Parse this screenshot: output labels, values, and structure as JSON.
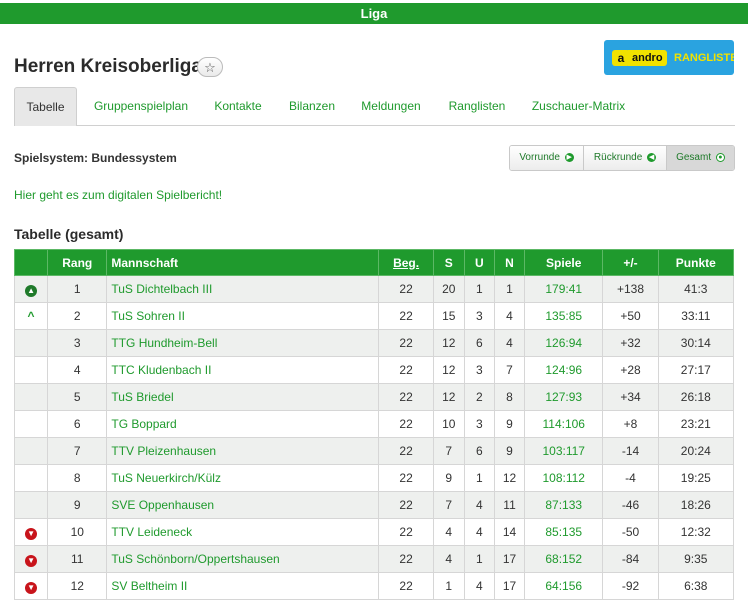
{
  "header": {
    "bar_label": "Liga"
  },
  "league": {
    "title": "Herren Kreisoberliga",
    "favorite_icon": "star-icon"
  },
  "sponsor": {
    "badge": "a",
    "brand": "andro",
    "label": "RANGLISTE"
  },
  "tabs": [
    {
      "label": "Tabelle",
      "active": true
    },
    {
      "label": "Gruppenspielplan",
      "active": false
    },
    {
      "label": "Kontakte",
      "active": false
    },
    {
      "label": "Bilanzen",
      "active": false
    },
    {
      "label": "Meldungen",
      "active": false
    },
    {
      "label": "Ranglisten",
      "active": false
    },
    {
      "label": "Zuschauer-Matrix",
      "active": false
    }
  ],
  "system": {
    "label": "Spielsystem: Bundessystem",
    "buttons": [
      {
        "label": "Vorrunde",
        "icon": "arrow-right-circle-icon"
      },
      {
        "label": "Rückrunde",
        "icon": "arrow-left-circle-icon"
      },
      {
        "label": "Gesamt",
        "icon": "target-circle-icon",
        "active": true
      }
    ]
  },
  "report_link": "Hier geht es zum digitalen Spielbericht!",
  "table": {
    "title": "Tabelle (gesamt)",
    "columns": [
      "",
      "Rang",
      "Mannschaft",
      "Beg.",
      "S",
      "U",
      "N",
      "Spiele",
      "+/-",
      "Punkte"
    ],
    "rows": [
      {
        "indicator": "promotion",
        "rank": "1",
        "team": "TuS Dichtelbach III",
        "beg": "22",
        "s": "20",
        "u": "1",
        "n": "1",
        "games": "179:41",
        "diff": "+138",
        "points": "41:3"
      },
      {
        "indicator": "relegation-up",
        "rank": "2",
        "team": "TuS Sohren II",
        "beg": "22",
        "s": "15",
        "u": "3",
        "n": "4",
        "games": "135:85",
        "diff": "+50",
        "points": "33:11"
      },
      {
        "indicator": "",
        "rank": "3",
        "team": "TTG Hundheim-Bell",
        "beg": "22",
        "s": "12",
        "u": "6",
        "n": "4",
        "games": "126:94",
        "diff": "+32",
        "points": "30:14"
      },
      {
        "indicator": "",
        "rank": "4",
        "team": "TTC Kludenbach II",
        "beg": "22",
        "s": "12",
        "u": "3",
        "n": "7",
        "games": "124:96",
        "diff": "+28",
        "points": "27:17"
      },
      {
        "indicator": "",
        "rank": "5",
        "team": "TuS Briedel",
        "beg": "22",
        "s": "12",
        "u": "2",
        "n": "8",
        "games": "127:93",
        "diff": "+34",
        "points": "26:18"
      },
      {
        "indicator": "",
        "rank": "6",
        "team": "TG Boppard",
        "beg": "22",
        "s": "10",
        "u": "3",
        "n": "9",
        "games": "114:106",
        "diff": "+8",
        "points": "23:21"
      },
      {
        "indicator": "",
        "rank": "7",
        "team": "TTV Pleizenhausen",
        "beg": "22",
        "s": "7",
        "u": "6",
        "n": "9",
        "games": "103:117",
        "diff": "-14",
        "points": "20:24"
      },
      {
        "indicator": "",
        "rank": "8",
        "team": "TuS Neuerkirch/Külz",
        "beg": "22",
        "s": "9",
        "u": "1",
        "n": "12",
        "games": "108:112",
        "diff": "-4",
        "points": "19:25"
      },
      {
        "indicator": "",
        "rank": "9",
        "team": "SVE Oppenhausen",
        "beg": "22",
        "s": "7",
        "u": "4",
        "n": "11",
        "games": "87:133",
        "diff": "-46",
        "points": "18:26"
      },
      {
        "indicator": "relegation-down",
        "rank": "10",
        "team": "TTV Leideneck",
        "beg": "22",
        "s": "4",
        "u": "4",
        "n": "14",
        "games": "85:135",
        "diff": "-50",
        "points": "12:32"
      },
      {
        "indicator": "relegation-down",
        "rank": "11",
        "team": "TuS Schönborn/Oppertshausen",
        "beg": "22",
        "s": "4",
        "u": "1",
        "n": "17",
        "games": "68:152",
        "diff": "-84",
        "points": "9:35"
      },
      {
        "indicator": "relegation-down",
        "rank": "12",
        "team": "SV Beltheim II",
        "beg": "22",
        "s": "1",
        "u": "4",
        "n": "17",
        "games": "64:156",
        "diff": "-92",
        "points": "6:38"
      }
    ]
  },
  "colors": {
    "accent": "#1f9a2d",
    "down": "#c8141b"
  }
}
